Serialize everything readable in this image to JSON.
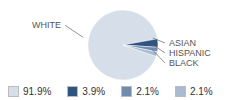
{
  "chart_data": {
    "type": "pie",
    "categories": [
      "WHITE",
      "ASIAN",
      "HISPANIC",
      "BLACK"
    ],
    "values": [
      91.9,
      3.9,
      2.1,
      2.1
    ],
    "value_labels": [
      "91.9%",
      "3.9%",
      "2.1%",
      "2.1%"
    ],
    "colors": [
      "#d5dee9",
      "#2e5480",
      "#6f8cae",
      "#a8bbd0"
    ],
    "legend": "bottom"
  }
}
